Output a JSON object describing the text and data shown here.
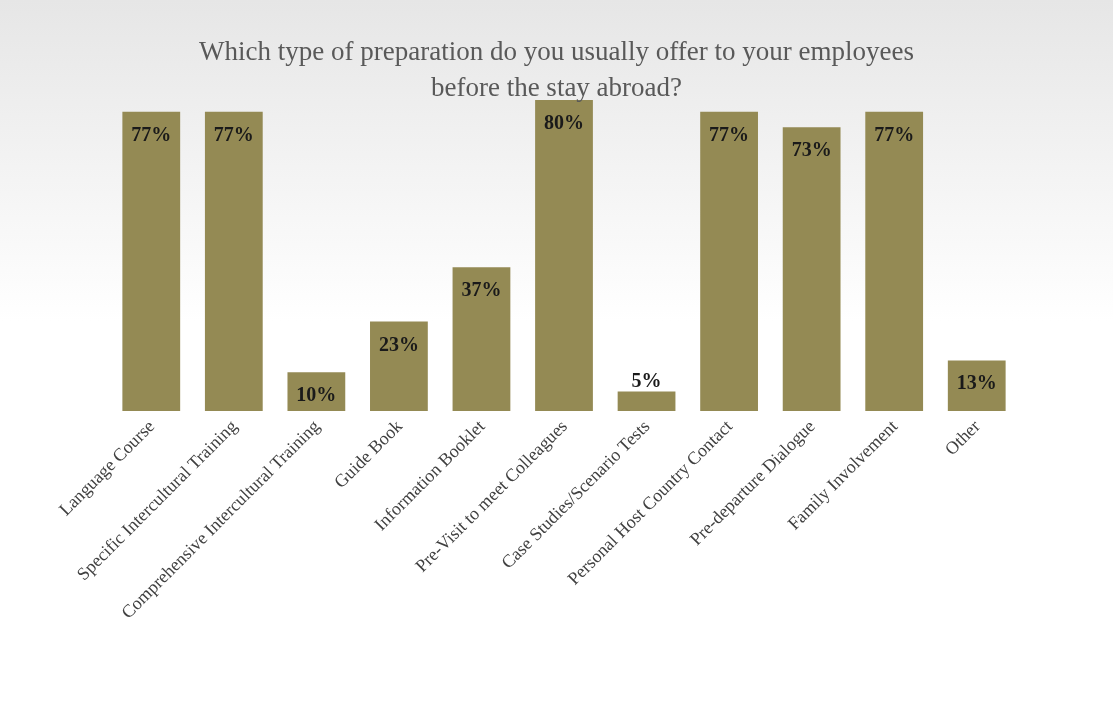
{
  "chart_data": {
    "type": "bar",
    "title": "Which type of preparation do you usually offer to your employees\nbefore the stay abroad?",
    "categories": [
      "Language Course",
      "Specific Intercultural Training",
      "Comprehensive Intercultural Training",
      "Guide Book",
      "Information Booklet",
      "Pre-Visit to meet Colleagues",
      "Case Studies/Scenario Tests",
      "Personal Host Country Contact",
      "Pre-departure Dialogue",
      "Family Involvement",
      "Other"
    ],
    "values": [
      77,
      77,
      10,
      23,
      37,
      80,
      5,
      77,
      73,
      77,
      13
    ],
    "value_labels": [
      "77%",
      "77%",
      "10%",
      "23%",
      "37%",
      "80%",
      "5%",
      "77%",
      "73%",
      "77%",
      "13%"
    ],
    "color": "#948a54"
  }
}
